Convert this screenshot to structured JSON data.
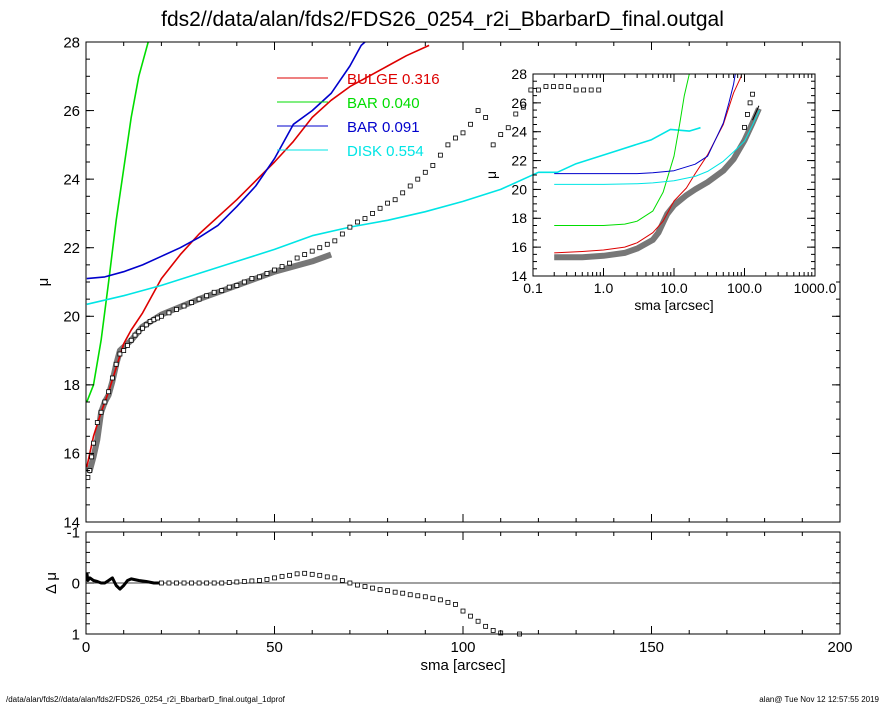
{
  "title": "fds2//data/alan/fds2/FDS26_0254_r2i_BbarbarD_final.outgal",
  "footer_left": "/data/alan/fds2//data/alan/fds2/FDS26_0254_r2i_BbarbarD_final.outgal_1dprof",
  "footer_right": "alan@  Tue Nov 12 12:57:55 2019",
  "colors": {
    "bulge": "#dd0000",
    "bar1": "#00dd00",
    "bar2": "#0000cc",
    "disk": "#00e5e5",
    "model": "#555555",
    "data": "#000000"
  },
  "chart_data": [
    {
      "type": "line",
      "panel": "main",
      "xlabel": "sma [arcsec]",
      "ylabel": "μ",
      "xlim": [
        0,
        200
      ],
      "ylim": [
        28,
        14
      ],
      "xticks": [
        0,
        50,
        100,
        150,
        200
      ],
      "yticks": [
        14,
        16,
        18,
        20,
        22,
        24,
        26,
        28
      ],
      "legend": [
        {
          "key": "bulge",
          "name": "BULGE",
          "value": "0.316"
        },
        {
          "key": "bar1",
          "name": "BAR",
          "value": "0.040"
        },
        {
          "key": "bar2",
          "name": "BAR",
          "value": "0.091"
        },
        {
          "key": "disk",
          "name": "DISK",
          "value": "0.554"
        }
      ],
      "legend_position": "top-center",
      "series": [
        {
          "key": "bulge",
          "x": [
            0.2,
            2,
            4,
            6,
            8,
            10,
            12,
            15,
            18,
            20,
            25,
            30,
            40,
            50,
            55,
            60,
            65,
            70,
            75,
            80,
            85,
            91
          ],
          "y": [
            15.6,
            16.5,
            17.2,
            17.8,
            18.5,
            19.2,
            19.6,
            20.1,
            20.7,
            21.1,
            21.8,
            22.4,
            23.4,
            24.5,
            25.1,
            25.8,
            26.3,
            26.7,
            27.0,
            27.3,
            27.6,
            27.9
          ]
        },
        {
          "key": "bar1",
          "x": [
            0.2,
            2,
            4,
            6,
            8,
            10,
            12,
            14,
            16,
            16.5
          ],
          "y": [
            17.5,
            18.0,
            19.3,
            21.0,
            22.8,
            24.3,
            25.8,
            27.0,
            27.8,
            28.0
          ]
        },
        {
          "key": "bar2",
          "x": [
            0.2,
            5,
            10,
            15,
            20,
            25,
            30,
            35,
            40,
            45,
            50,
            55,
            60,
            65,
            70,
            73,
            74
          ],
          "y": [
            21.1,
            21.15,
            21.3,
            21.5,
            21.75,
            22.0,
            22.3,
            22.65,
            23.2,
            23.8,
            24.6,
            25.6,
            26.0,
            26.5,
            27.3,
            27.9,
            28.0
          ]
        },
        {
          "key": "disk",
          "x": [
            0.2,
            10,
            20,
            30,
            40,
            50,
            60,
            70,
            80,
            90,
            100,
            110,
            120,
            125,
            130,
            140,
            150,
            155,
            160,
            163
          ],
          "y": [
            20.35,
            20.6,
            20.9,
            21.25,
            21.6,
            21.95,
            22.35,
            22.6,
            22.8,
            23.05,
            23.35,
            23.7,
            24.2,
            24.2,
            24.45,
            24.8,
            25.15,
            25.45,
            25.4,
            25.5
          ]
        },
        {
          "key": "model",
          "x": [
            0.2,
            1,
            2,
            3,
            4,
            5,
            6,
            7,
            8,
            9,
            10,
            12,
            15,
            20,
            30,
            40,
            50,
            60,
            65
          ],
          "y": [
            15.6,
            15.5,
            15.9,
            16.4,
            17.2,
            17.5,
            17.7,
            18.1,
            18.6,
            19.0,
            19.1,
            19.3,
            19.7,
            20.05,
            20.5,
            20.9,
            21.3,
            21.6,
            21.8
          ]
        }
      ],
      "points": {
        "key": "data",
        "x": [
          0.5,
          1,
          1.5,
          2,
          3,
          4,
          5,
          6,
          7,
          8,
          9,
          10,
          11,
          12,
          13,
          14,
          15,
          16,
          17,
          18,
          19,
          20,
          22,
          24,
          26,
          28,
          30,
          32,
          34,
          36,
          38,
          40,
          42,
          44,
          46,
          48,
          50,
          52,
          54,
          56,
          58,
          60,
          62,
          64,
          66,
          68,
          70,
          72,
          74,
          76,
          78,
          80,
          82,
          84,
          86,
          88,
          90,
          92,
          94,
          96,
          98,
          100,
          102,
          104,
          106,
          108,
          110,
          112,
          114,
          116,
          118,
          120,
          122,
          124,
          126,
          128,
          130,
          132,
          134,
          136
        ],
        "y": [
          15.3,
          15.5,
          15.9,
          16.3,
          16.9,
          17.2,
          17.5,
          17.8,
          18.2,
          18.6,
          18.9,
          19.0,
          19.15,
          19.3,
          19.45,
          19.55,
          19.65,
          19.75,
          19.85,
          19.9,
          19.95,
          20.0,
          20.1,
          20.2,
          20.3,
          20.4,
          20.5,
          20.6,
          20.7,
          20.75,
          20.85,
          20.9,
          21.0,
          21.1,
          21.15,
          21.25,
          21.35,
          21.45,
          21.55,
          21.7,
          21.8,
          21.9,
          22.0,
          22.1,
          22.2,
          22.4,
          22.6,
          22.75,
          22.85,
          23.0,
          23.15,
          23.3,
          23.4,
          23.6,
          23.8,
          24.0,
          24.2,
          24.4,
          24.7,
          25.0,
          25.2,
          25.35,
          25.6,
          26.0,
          25.8,
          25.0,
          25.3,
          25.5,
          25.9,
          26.1,
          26.6,
          26.6,
          26.7,
          26.7,
          26.7,
          26.7,
          26.6,
          26.6,
          26.6,
          26.6
        ]
      }
    },
    {
      "type": "line",
      "panel": "inset",
      "xlabel": "sma [arcsec]",
      "ylabel": "μ",
      "xscale": "log",
      "xlim": [
        0.1,
        1000
      ],
      "ylim": [
        28,
        14
      ],
      "xticks": [
        "0.1",
        "1.0",
        "10.0",
        "100.0",
        "1000.0"
      ],
      "yticks": [
        14,
        16,
        18,
        20,
        22,
        24,
        26,
        28
      ],
      "series": [
        {
          "key": "bulge",
          "x": [
            0.2,
            0.5,
            1,
            2,
            3,
            5,
            7,
            10,
            15,
            20,
            30,
            50,
            70,
            91
          ],
          "y": [
            15.6,
            15.7,
            15.8,
            16.0,
            16.3,
            17.0,
            17.8,
            19.2,
            20.1,
            21.1,
            22.4,
            24.5,
            26.7,
            27.9
          ]
        },
        {
          "key": "bar1",
          "x": [
            0.2,
            0.5,
            1,
            2,
            3,
            5,
            7,
            10,
            12,
            14,
            16.5
          ],
          "y": [
            17.5,
            17.5,
            17.5,
            17.6,
            17.8,
            18.5,
            19.8,
            22.3,
            24.5,
            26.5,
            28.0
          ]
        },
        {
          "key": "bar2",
          "x": [
            0.2,
            1,
            3,
            5,
            10,
            20,
            30,
            50,
            60,
            70,
            74
          ],
          "y": [
            21.1,
            21.1,
            21.1,
            21.15,
            21.3,
            21.75,
            22.3,
            24.6,
            26.0,
            27.3,
            28.0
          ]
        },
        {
          "key": "disk",
          "x": [
            0.2,
            1,
            3,
            5,
            10,
            20,
            30,
            50,
            70,
            100,
            130,
            163
          ],
          "y": [
            20.35,
            20.35,
            20.4,
            20.45,
            20.6,
            20.9,
            21.25,
            21.95,
            22.6,
            23.35,
            24.45,
            25.5
          ]
        },
        {
          "key": "model",
          "x": [
            0.2,
            0.5,
            1,
            2,
            3,
            5,
            6,
            7,
            8,
            10,
            15,
            20,
            30,
            50,
            70,
            100,
            130,
            160
          ],
          "y": [
            15.3,
            15.3,
            15.4,
            15.6,
            15.9,
            16.5,
            17.0,
            17.7,
            18.3,
            18.9,
            19.6,
            20.0,
            20.5,
            21.3,
            22.1,
            23.4,
            24.6,
            25.6
          ]
        }
      ],
      "points": {
        "key": "data",
        "x": [
          100,
          110,
          120,
          130
        ],
        "y": [
          24.3,
          25.2,
          26.0,
          26.6
        ]
      }
    },
    {
      "type": "scatter",
      "panel": "residual",
      "xlabel": "sma [arcsec]",
      "ylabel": "Δ μ",
      "xlim": [
        0,
        200
      ],
      "ylim": [
        -1,
        1
      ],
      "xticks": [
        0,
        50,
        100,
        150,
        200
      ],
      "yticks": [
        -1,
        0,
        1
      ],
      "line": {
        "x": [
          0.2,
          0.5,
          1,
          2,
          3,
          4,
          5,
          6,
          7,
          8,
          9,
          10,
          11,
          12,
          14,
          16,
          18,
          20
        ],
        "y": [
          -0.2,
          -0.05,
          -0.1,
          -0.05,
          -0.03,
          0.0,
          0.0,
          -0.05,
          -0.1,
          0.05,
          0.12,
          0.05,
          -0.05,
          -0.08,
          -0.05,
          -0.03,
          0.0,
          0.0
        ]
      },
      "points": {
        "x": [
          20,
          22,
          24,
          26,
          28,
          30,
          32,
          34,
          36,
          38,
          40,
          42,
          44,
          46,
          48,
          50,
          52,
          54,
          56,
          58,
          60,
          62,
          64,
          66,
          68,
          70,
          72,
          74,
          76,
          78,
          80,
          82,
          84,
          86,
          88,
          90,
          92,
          94,
          96,
          98,
          100,
          102,
          104,
          106,
          108,
          110,
          115
        ],
        "y": [
          0.0,
          0.0,
          0.0,
          0.0,
          0.0,
          0.0,
          0.0,
          0.0,
          0.0,
          -0.01,
          -0.02,
          -0.03,
          -0.04,
          -0.05,
          -0.07,
          -0.1,
          -0.13,
          -0.15,
          -0.18,
          -0.19,
          -0.17,
          -0.15,
          -0.12,
          -0.1,
          -0.05,
          0.0,
          0.04,
          0.07,
          0.1,
          0.13,
          0.15,
          0.18,
          0.2,
          0.23,
          0.25,
          0.27,
          0.3,
          0.33,
          0.38,
          0.42,
          0.55,
          0.65,
          0.75,
          0.85,
          0.93,
          0.98,
          1.0
        ]
      }
    }
  ]
}
